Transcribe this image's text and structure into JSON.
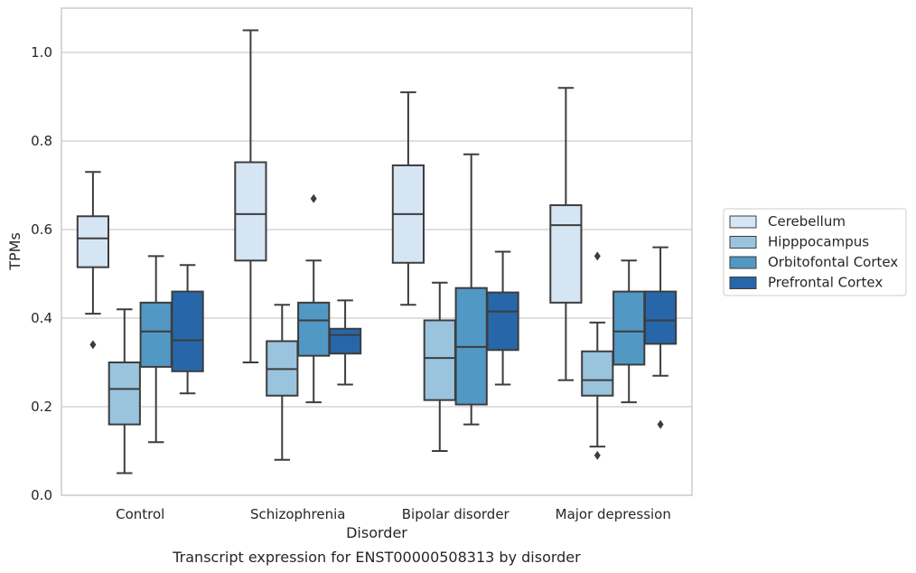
{
  "chart_data": {
    "type": "box",
    "caption": "Transcript expression for ENST00000508313 by disorder",
    "xlabel": "Disorder",
    "ylabel": "TPMs",
    "ylim": [
      0.0,
      1.1
    ],
    "yticks": [
      "0.0",
      "0.2",
      "0.4",
      "0.6",
      "0.8",
      "1.0"
    ],
    "grid": "horizontal",
    "legend_position": "right",
    "categories": [
      "Control",
      "Schizophrenia",
      "Bipolar disorder",
      "Major depression"
    ],
    "series": [
      {
        "name": "Cerebellum",
        "color": "#d6e5f4",
        "boxes": [
          {
            "whislo": 0.41,
            "q1": 0.515,
            "med": 0.58,
            "q3": 0.63,
            "whishi": 0.73,
            "fliers": [
              0.34
            ]
          },
          {
            "whislo": 0.3,
            "q1": 0.53,
            "med": 0.635,
            "q3": 0.752,
            "whishi": 1.05,
            "fliers": []
          },
          {
            "whislo": 0.43,
            "q1": 0.525,
            "med": 0.635,
            "q3": 0.745,
            "whishi": 0.91,
            "fliers": []
          },
          {
            "whislo": 0.26,
            "q1": 0.435,
            "med": 0.61,
            "q3": 0.655,
            "whishi": 0.92,
            "fliers": []
          }
        ]
      },
      {
        "name": "Hipppocampus",
        "color": "#9ac4de",
        "boxes": [
          {
            "whislo": 0.05,
            "q1": 0.16,
            "med": 0.24,
            "q3": 0.3,
            "whishi": 0.42,
            "fliers": []
          },
          {
            "whislo": 0.08,
            "q1": 0.225,
            "med": 0.285,
            "q3": 0.348,
            "whishi": 0.43,
            "fliers": []
          },
          {
            "whislo": 0.1,
            "q1": 0.215,
            "med": 0.31,
            "q3": 0.395,
            "whishi": 0.48,
            "fliers": []
          },
          {
            "whislo": 0.11,
            "q1": 0.225,
            "med": 0.26,
            "q3": 0.325,
            "whishi": 0.39,
            "fliers": [
              0.09,
              0.54
            ]
          }
        ]
      },
      {
        "name": "Orbitofontal Cortex",
        "color": "#5198c5",
        "boxes": [
          {
            "whislo": 0.12,
            "q1": 0.29,
            "med": 0.37,
            "q3": 0.435,
            "whishi": 0.54,
            "fliers": []
          },
          {
            "whislo": 0.21,
            "q1": 0.315,
            "med": 0.395,
            "q3": 0.435,
            "whishi": 0.53,
            "fliers": [
              0.67
            ]
          },
          {
            "whislo": 0.16,
            "q1": 0.205,
            "med": 0.335,
            "q3": 0.468,
            "whishi": 0.77,
            "fliers": []
          },
          {
            "whislo": 0.21,
            "q1": 0.295,
            "med": 0.37,
            "q3": 0.46,
            "whishi": 0.53,
            "fliers": []
          }
        ]
      },
      {
        "name": "Prefrontal Cortex",
        "color": "#2767a9",
        "boxes": [
          {
            "whislo": 0.23,
            "q1": 0.28,
            "med": 0.35,
            "q3": 0.46,
            "whishi": 0.52,
            "fliers": []
          },
          {
            "whislo": 0.25,
            "q1": 0.32,
            "med": 0.362,
            "q3": 0.376,
            "whishi": 0.44,
            "fliers": []
          },
          {
            "whislo": 0.25,
            "q1": 0.328,
            "med": 0.415,
            "q3": 0.458,
            "whishi": 0.55,
            "fliers": []
          },
          {
            "whislo": 0.27,
            "q1": 0.342,
            "med": 0.395,
            "q3": 0.46,
            "whishi": 0.56,
            "fliers": [
              0.16
            ]
          }
        ]
      }
    ]
  }
}
